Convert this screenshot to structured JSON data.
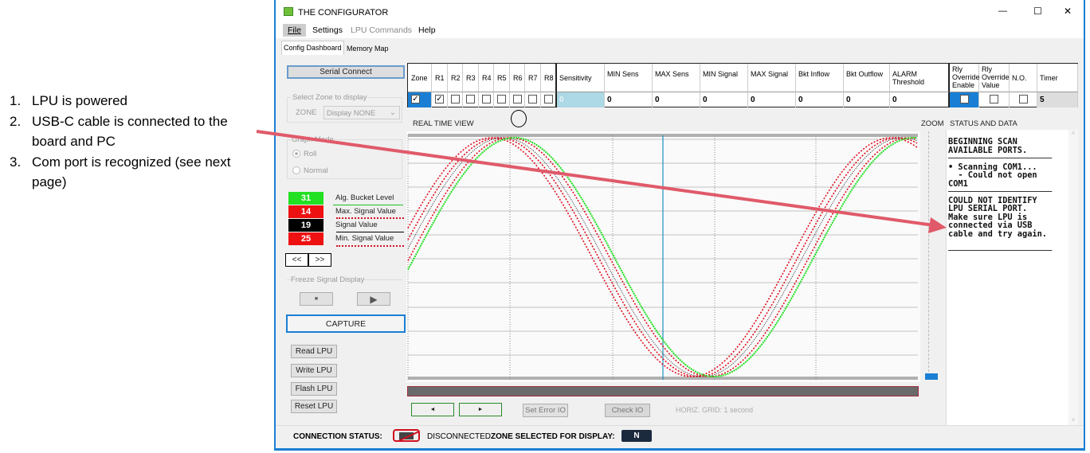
{
  "notes": [
    {
      "num": "1.",
      "text": "LPU is powered"
    },
    {
      "num": "2.",
      "text": "USB-C cable is connected to the board and PC"
    },
    {
      "num": "3.",
      "text": "Com port is recognized (see next page)"
    }
  ],
  "window": {
    "title": "THE CONFIGURATOR",
    "controls": {
      "minimize": "—",
      "maximize": "☐",
      "close": "✕"
    }
  },
  "menu": [
    "File",
    "Settings",
    "LPU Commands",
    "Help"
  ],
  "tabs": [
    "Config Dashboard",
    "Memory Map"
  ],
  "left": {
    "serial_connect": "Serial Connect",
    "zone_group": "Select Zone to display",
    "zone_label": "ZONE",
    "zone_value": "Display NONE",
    "graph_mode": "Graph Mode",
    "roll": "Roll",
    "normal": "Normal",
    "legend": [
      {
        "value": "31",
        "label": "Alg. Bucket Level",
        "color": "#22e022"
      },
      {
        "value": "14",
        "label": "Max. Signal Value",
        "color": "#ee1111"
      },
      {
        "value": "19",
        "label": "Signal Value",
        "color": "#000000"
      },
      {
        "value": "25",
        "label": "Min. Signal Value",
        "color": "#ee1111"
      }
    ],
    "prev": "<<",
    "next": ">>",
    "freeze": "Freeze Signal Display",
    "pause": "■",
    "play": "▶",
    "capture": "CAPTURE",
    "read": "Read LPU",
    "write": "Write LPU",
    "flash": "Flash LPU",
    "reset": "Reset LPU"
  },
  "table": {
    "headers": [
      "Zone",
      "R1",
      "R2",
      "R3",
      "R4",
      "R5",
      "R6",
      "R7",
      "R8",
      "Sensitivity",
      "MIN Sens",
      "MAX Sens",
      "MIN Signal",
      "MAX Signal",
      "Bkt Inflow",
      "Bkt Outflow",
      "ALARM Threshold",
      "Rly Override Enable",
      "Rly Override Value",
      "N.O.",
      "Timer"
    ],
    "checks": {
      "zone": true,
      "r1": true,
      "r2": false,
      "r3": false,
      "r4": false,
      "r5": false,
      "r6": false,
      "r7": false,
      "r8": false,
      "rly_enable": false,
      "rly_value": false,
      "no": false
    },
    "values": {
      "sensitivity": "0",
      "min_sens": "0",
      "max_sens": "0",
      "min_signal": "0",
      "max_signal": "0",
      "bkt_inflow": "0",
      "bkt_outflow": "0",
      "alarm": "0",
      "timer": "5"
    }
  },
  "realtime": {
    "title": "REAL TIME VIEW",
    "zoom": "ZOOM",
    "horiz_grid": "HORIZ. GRID: 1 second",
    "left_btn": "◄",
    "right_btn": "►",
    "set_error": "Set Error IO",
    "check_io": "Check IO"
  },
  "status": {
    "title": "STATUS AND DATA",
    "text": "BEGINNING SCAN\nAVAILABLE PORTS.\n─────────────────────\n• Scanning COM1...\n  - Could not open\nCOM1\n─────────────────────\nCOULD NOT IDENTIFY\nLPU SERIAL PORT.\nMake sure LPU is\nconnected via USB\ncable and try again.\n\n─────────────────────"
  },
  "footer": {
    "conn_label": "CONNECTION STATUS:",
    "conn_value": "DISCONNECTED",
    "zone_label": "ZONE SELECTED FOR DISPLAY:",
    "zone_value": "N"
  },
  "colors": {
    "accent": "#1a7fd4",
    "arrow": "#e05a6a",
    "green": "#22e022",
    "red": "#ee1111"
  }
}
